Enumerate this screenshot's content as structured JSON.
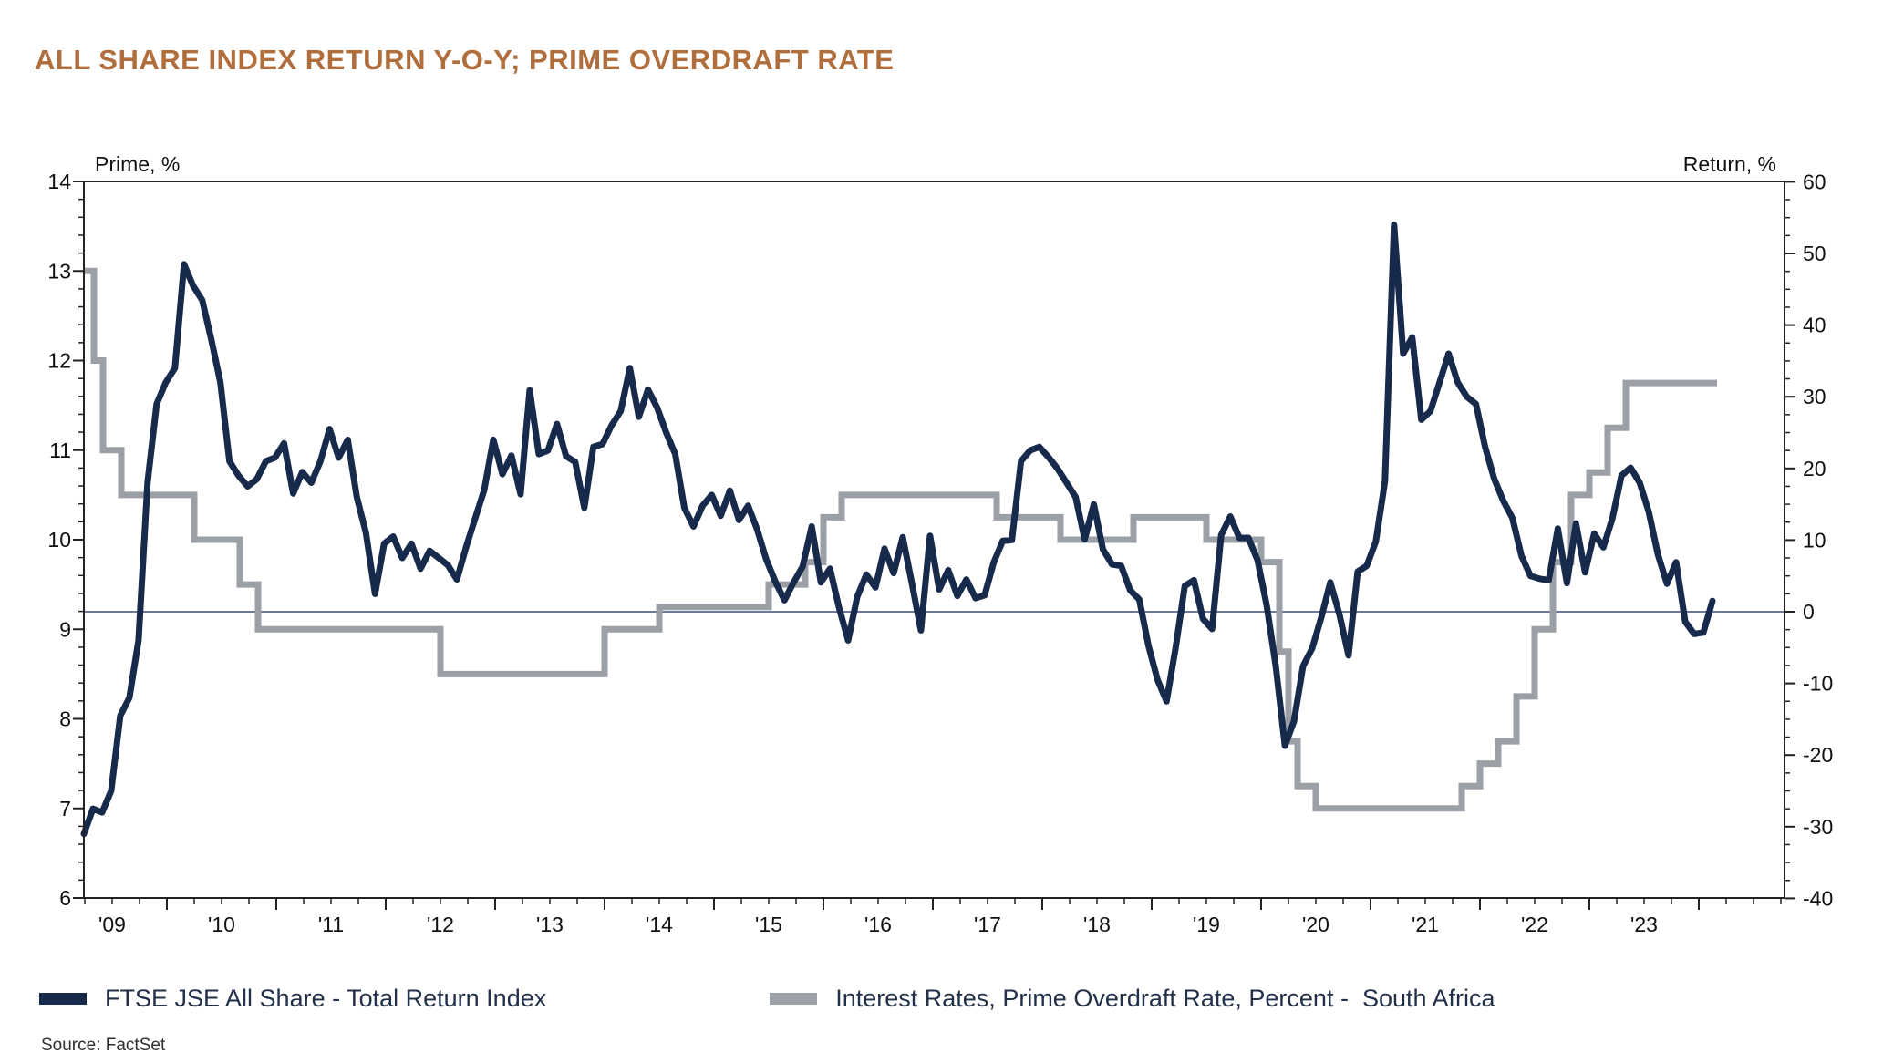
{
  "title": "ALL SHARE INDEX RETURN Y-O-Y; PRIME OVERDRAFT RATE",
  "source_note": "Source: FactSet",
  "colors": {
    "title": "#b06e3c",
    "navy_series": "#172a4b",
    "gray_series": "#9aa0a6",
    "axis_frame": "#222222",
    "zero_line": "#3d4d73",
    "tick_text": "#111111",
    "legend_text": "#22304a"
  },
  "legend": [
    {
      "label": "FTSE JSE All Share - Total Return Index",
      "color": "#172a4b"
    },
    {
      "label": "Interest Rates, Prime Overdraft Rate, Percent -  South Africa",
      "color": "#9aa0a6"
    }
  ],
  "chart_data": {
    "type": "line",
    "title": "ALL SHARE INDEX RETURN Y-O-Y; PRIME OVERDRAFT RATE",
    "left_axis": {
      "label": "Prime, %",
      "min": 6,
      "max": 14,
      "major_tick": 1,
      "minor_tick": 0.2,
      "tick_labels": [
        14,
        13,
        12,
        11,
        10,
        9,
        8,
        7,
        6
      ]
    },
    "right_axis": {
      "label": "Return, %",
      "min": -40,
      "max": 60,
      "major_tick": 10,
      "minor_tick": 2.5,
      "tick_labels": [
        60,
        50,
        40,
        30,
        20,
        10,
        0,
        -10,
        -20,
        -30,
        -40
      ],
      "zero_line": 0
    },
    "x_axis": {
      "start_year": 2009,
      "end_year": 2024,
      "tick_labels": [
        "'09",
        "'10",
        "'11",
        "'12",
        "'13",
        "'14",
        "'15",
        "'16",
        "'17",
        "'18",
        "'19",
        "'20",
        "'21",
        "'22",
        "'23"
      ],
      "minor_ticks": "quarterly"
    },
    "series": [
      {
        "name": "FTSE JSE All Share - Total Return Index",
        "axis": "return",
        "unit": "%",
        "frequency": "monthly",
        "start": "2009-03",
        "values": [
          -31,
          -27.5,
          -28,
          -25,
          -14.5,
          -12,
          -4,
          18,
          29,
          32,
          34,
          48.5,
          45.5,
          43.5,
          38,
          32,
          21,
          19,
          17.5,
          18.5,
          21,
          21.5,
          23.5,
          16.5,
          19.5,
          18,
          21,
          25.5,
          21.5,
          24,
          16,
          11,
          2.5,
          9.5,
          10.5,
          7.5,
          9.5,
          6,
          8.5,
          7.5,
          6.5,
          4.5,
          9,
          13,
          17,
          24,
          19.2,
          21.8,
          16.4,
          30.9,
          22,
          22.5,
          26.2,
          21.7,
          20.9,
          14.5,
          23,
          23.4,
          26,
          28,
          34,
          27.2,
          31,
          28.5,
          25,
          22,
          14.5,
          11.9,
          14.8,
          16.3,
          13.4,
          16.9,
          12.8,
          14.8,
          11.5,
          7.3,
          4.2,
          1.6,
          4.1,
          6.3,
          11.9,
          4.1,
          6,
          0.6,
          -4,
          2.1,
          5.2,
          3.4,
          8.8,
          5.4,
          10.4,
          4,
          -2.6,
          10.6,
          3.1,
          5.8,
          2.2,
          4.5,
          1.9,
          2.3,
          6.9,
          9.9,
          10,
          21,
          22.5,
          23,
          21.6,
          20,
          18,
          16,
          10.1,
          15,
          8.7,
          6.6,
          6.4,
          3,
          1.7,
          -4.7,
          -9.5,
          -12.5,
          -5,
          3.6,
          4.4,
          -1,
          -2.4,
          10.7,
          13.3,
          10.3,
          10.3,
          7.2,
          0.9,
          -7.6,
          -18.7,
          -15.3,
          -7.6,
          -5.1,
          -0.8,
          4.1,
          -0.4,
          -6.1,
          5.6,
          6.4,
          9.8,
          18.2,
          54,
          36,
          38.3,
          26.8,
          28,
          32,
          36,
          32,
          30,
          29,
          23,
          18.6,
          15.5,
          13.1,
          7.8,
          5,
          4.6,
          4.4,
          11.6,
          4,
          12.3,
          5.5,
          10.9,
          9,
          13,
          19,
          20.1,
          18,
          13.9,
          8,
          3.9,
          6.9,
          -1.4,
          -3.1,
          -2.9,
          1.5
        ]
      },
      {
        "name": "Interest Rates, Prime Overdraft Rate, Percent - South Africa",
        "axis": "prime",
        "unit": "%",
        "type": "step",
        "end": "2024-03",
        "changes": [
          [
            "2009-03",
            13.0
          ],
          [
            "2009-05",
            12.0
          ],
          [
            "2009-06",
            11.0
          ],
          [
            "2009-08",
            10.5
          ],
          [
            "2010-04",
            10.0
          ],
          [
            "2010-09",
            9.5
          ],
          [
            "2010-11",
            9.0
          ],
          [
            "2012-07",
            8.5
          ],
          [
            "2014-01",
            9.0
          ],
          [
            "2014-07",
            9.25
          ],
          [
            "2015-07",
            9.5
          ],
          [
            "2015-11",
            9.75
          ],
          [
            "2016-01",
            10.25
          ],
          [
            "2016-03",
            10.5
          ],
          [
            "2017-08",
            10.25
          ],
          [
            "2018-03",
            10.0
          ],
          [
            "2018-11",
            10.25
          ],
          [
            "2019-07",
            10.0
          ],
          [
            "2020-01",
            9.75
          ],
          [
            "2020-03",
            8.75
          ],
          [
            "2020-04",
            7.75
          ],
          [
            "2020-05",
            7.25
          ],
          [
            "2020-07",
            7.0
          ],
          [
            "2021-11",
            7.25
          ],
          [
            "2022-01",
            7.5
          ],
          [
            "2022-03",
            7.75
          ],
          [
            "2022-05",
            8.25
          ],
          [
            "2022-07",
            9.0
          ],
          [
            "2022-09",
            9.75
          ],
          [
            "2022-11",
            10.5
          ],
          [
            "2023-01",
            10.75
          ],
          [
            "2023-03",
            11.25
          ],
          [
            "2023-05",
            11.75
          ]
        ]
      }
    ]
  }
}
